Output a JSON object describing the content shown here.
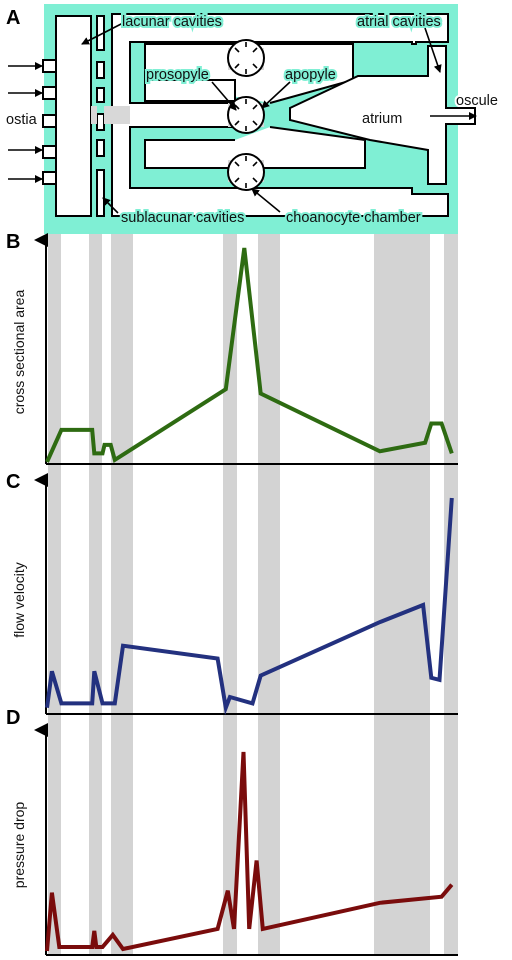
{
  "panels": {
    "A": "A",
    "B": "B",
    "C": "C",
    "D": "D"
  },
  "diagram_labels": {
    "lacunar": "lacunar cavities",
    "atrial": "atrial cavities",
    "prosopyle": "prosopyle",
    "apopyle": "apopyle",
    "ostia": "ostia",
    "atrium": "atrium",
    "oscule": "oscule",
    "sublacunar": "sublacunar cavities",
    "choanocyte": "choanocyte chamber"
  },
  "colors": {
    "tissue": "#7fefd4",
    "band": "#d3d3d3",
    "area": "#2e6b12",
    "velocity": "#23317f",
    "pressure": "#7a0c0c"
  },
  "chart_data": [
    {
      "type": "line",
      "panel": "B",
      "ylabel": "cross sectional area",
      "series": [
        {
          "values": [
            [
              0,
              0
            ],
            [
              0.035,
              0.15
            ],
            [
              0.11,
              0.15
            ],
            [
              0.115,
              0.04
            ],
            [
              0.135,
              0.04
            ],
            [
              0.14,
              0.08
            ],
            [
              0.155,
              0.08
            ],
            [
              0.165,
              0.01
            ],
            [
              0.435,
              0.34
            ],
            [
              0.48,
              1.0
            ],
            [
              0.52,
              0.32
            ],
            [
              0.81,
              0.05
            ],
            [
              0.92,
              0.09
            ],
            [
              0.935,
              0.18
            ],
            [
              0.96,
              0.18
            ],
            [
              0.985,
              0.04
            ]
          ]
        }
      ]
    },
    {
      "type": "line",
      "panel": "C",
      "ylabel": "flow velocity",
      "series": [
        {
          "values": [
            [
              0,
              0.02
            ],
            [
              0.012,
              0.19
            ],
            [
              0.035,
              0.04
            ],
            [
              0.11,
              0.04
            ],
            [
              0.115,
              0.19
            ],
            [
              0.135,
              0.04
            ],
            [
              0.165,
              0.04
            ],
            [
              0.185,
              0.31
            ],
            [
              0.415,
              0.25
            ],
            [
              0.435,
              0.02
            ],
            [
              0.445,
              0.07
            ],
            [
              0.5,
              0.04
            ],
            [
              0.52,
              0.17
            ],
            [
              0.81,
              0.42
            ],
            [
              0.915,
              0.5
            ],
            [
              0.935,
              0.16
            ],
            [
              0.955,
              0.15
            ],
            [
              0.985,
              1.0
            ]
          ]
        }
      ]
    },
    {
      "type": "line",
      "panel": "D",
      "ylabel": "pressure drop",
      "series": [
        {
          "values": [
            [
              0,
              0.01
            ],
            [
              0.012,
              0.3
            ],
            [
              0.03,
              0.03
            ],
            [
              0.11,
              0.03
            ],
            [
              0.115,
              0.11
            ],
            [
              0.12,
              0.03
            ],
            [
              0.135,
              0.03
            ],
            [
              0.16,
              0.09
            ],
            [
              0.185,
              0.02
            ],
            [
              0.415,
              0.12
            ],
            [
              0.44,
              0.31
            ],
            [
              0.455,
              0.12
            ],
            [
              0.478,
              1.0
            ],
            [
              0.492,
              0.12
            ],
            [
              0.51,
              0.46
            ],
            [
              0.525,
              0.12
            ],
            [
              0.81,
              0.25
            ],
            [
              0.96,
              0.28
            ],
            [
              0.985,
              0.34
            ]
          ]
        }
      ]
    }
  ]
}
